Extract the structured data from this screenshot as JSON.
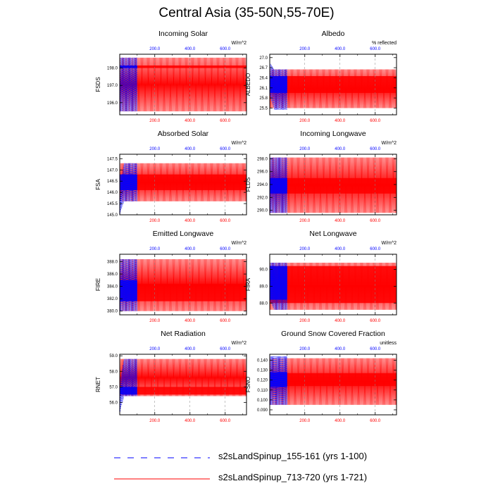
{
  "title": "Central Asia (35-50N,55-70E)",
  "colors": {
    "series_a": "#0000ff",
    "series_b": "#ff0000"
  },
  "legend": [
    {
      "label": "s2sLandSpinup_155-161 (yrs 1-100)",
      "color": "#0000ff",
      "style": "dashed"
    },
    {
      "label": "s2sLandSpinup_713-720 (yrs 1-721)",
      "color": "#ff0000",
      "style": "solid"
    }
  ],
  "chart_data": [
    {
      "type": "line",
      "title": "Incoming Solar",
      "ylabel": "FSDS",
      "units": "W/m^2",
      "top_ticks": [
        "200.0",
        "400.0",
        "600.0"
      ],
      "bottom_ticks": [
        "200.0",
        "400.0",
        "600.0"
      ],
      "xlim": [
        1,
        721
      ],
      "ylim": [
        195.3,
        198.8
      ],
      "yticks": [
        196.0,
        197.0,
        198.0
      ],
      "ytick_labels": [
        "196.0",
        "197.0",
        "198.0"
      ],
      "series": [
        {
          "legend_index": 0,
          "x_range": [
            1,
            100
          ],
          "low_start": 195.5,
          "low_end": 195.5,
          "high_start": 198.6,
          "high_end": 198.6,
          "inner_low": 198.0,
          "inner_high": 198.15
        },
        {
          "legend_index": 1,
          "x_range": [
            1,
            721
          ],
          "low_start": 195.5,
          "low_end": 195.5,
          "high_start": 198.6,
          "high_end": 198.6,
          "inner_low": 198.0,
          "inner_high": 198.15
        }
      ]
    },
    {
      "type": "line",
      "title": "Albedo",
      "ylabel": "ALBEDO",
      "units": "% reflected",
      "top_ticks": [
        "200.0",
        "400.0",
        "600.0"
      ],
      "bottom_ticks": [
        "200.0",
        "400.0",
        "600.0"
      ],
      "xlim": [
        1,
        721
      ],
      "ylim": [
        25.3,
        27.1
      ],
      "yticks": [
        25.5,
        25.8,
        26.1,
        26.4,
        26.7,
        27.0
      ],
      "ytick_labels": [
        "25.5",
        "25.8",
        "26.1",
        "26.4",
        "26.7",
        "27.0"
      ],
      "series": [
        {
          "legend_index": 0,
          "x_range": [
            1,
            100
          ],
          "low_start": 25.9,
          "low_end": 25.45,
          "high_start": 26.85,
          "high_end": 26.65,
          "inner_low": 25.95,
          "inner_high": 26.45
        },
        {
          "legend_index": 1,
          "x_range": [
            1,
            721
          ],
          "low_start": 25.5,
          "low_end": 25.5,
          "high_start": 26.65,
          "high_end": 26.65,
          "inner_low": 25.95,
          "inner_high": 26.45
        }
      ]
    },
    {
      "type": "line",
      "title": "Absorbed Solar",
      "ylabel": "FSA",
      "units": "W/m^2",
      "top_ticks": [
        "200.0",
        "400.0",
        "600.0"
      ],
      "bottom_ticks": [
        "200.0",
        "400.0",
        "600.0"
      ],
      "xlim": [
        1,
        721
      ],
      "ylim": [
        145.0,
        147.7
      ],
      "yticks": [
        145.0,
        145.5,
        146.0,
        146.5,
        147.0,
        147.5
      ],
      "ytick_labels": [
        "145.0",
        "145.5",
        "146.0",
        "146.5",
        "147.0",
        "147.5"
      ],
      "series": [
        {
          "legend_index": 0,
          "x_range": [
            1,
            100
          ],
          "low_start": 145.0,
          "low_end": 145.6,
          "high_start": 146.3,
          "high_end": 147.3,
          "inner_low": 146.1,
          "inner_high": 146.8
        },
        {
          "legend_index": 1,
          "x_range": [
            1,
            721
          ],
          "low_start": 145.6,
          "low_end": 145.6,
          "high_start": 147.3,
          "high_end": 147.3,
          "inner_low": 146.1,
          "inner_high": 146.8
        }
      ]
    },
    {
      "type": "line",
      "title": "Incoming Longwave",
      "ylabel": "FLDS",
      "units": "W/m^2",
      "top_ticks": [
        "200.0",
        "400.0",
        "600.0"
      ],
      "bottom_ticks": [
        "200.0",
        "400.0",
        "600.0"
      ],
      "xlim": [
        1,
        721
      ],
      "ylim": [
        289.3,
        298.7
      ],
      "yticks": [
        290.0,
        292.0,
        294.0,
        296.0,
        298.0
      ],
      "ytick_labels": [
        "290.0",
        "292.0",
        "294.0",
        "296.0",
        "298.0"
      ],
      "series": [
        {
          "legend_index": 0,
          "x_range": [
            1,
            100
          ],
          "low_start": 289.6,
          "low_end": 289.6,
          "high_start": 298.2,
          "high_end": 298.2,
          "inner_low": 292.6,
          "inner_high": 295.0
        },
        {
          "legend_index": 1,
          "x_range": [
            1,
            721
          ],
          "low_start": 289.6,
          "low_end": 289.6,
          "high_start": 298.2,
          "high_end": 298.2,
          "inner_low": 292.6,
          "inner_high": 295.0
        }
      ]
    },
    {
      "type": "line",
      "title": "Emitted Longwave",
      "ylabel": "FIRE",
      "units": "W/m^2",
      "top_ticks": [
        "200.0",
        "400.0",
        "600.0"
      ],
      "bottom_ticks": [
        "200.0",
        "400.0",
        "600.0"
      ],
      "xlim": [
        1,
        721
      ],
      "ylim": [
        379.4,
        389.2
      ],
      "yticks": [
        380.0,
        382.0,
        384.0,
        386.0,
        388.0
      ],
      "ytick_labels": [
        "380.0",
        "382.0",
        "384.0",
        "386.0",
        "388.0"
      ],
      "series": [
        {
          "legend_index": 0,
          "x_range": [
            1,
            100
          ],
          "low_start": 380.0,
          "low_end": 380.0,
          "high_start": 388.4,
          "high_end": 388.4,
          "inner_low": 381.6,
          "inner_high": 385.0
        },
        {
          "legend_index": 1,
          "x_range": [
            1,
            721
          ],
          "low_start": 380.0,
          "low_end": 380.0,
          "high_start": 388.4,
          "high_end": 388.4,
          "inner_low": 381.6,
          "inner_high": 384.4
        }
      ]
    },
    {
      "type": "line",
      "title": "Net Longwave",
      "ylabel": "FIRA",
      "units": "W/m^2",
      "top_ticks": [
        "200.0",
        "400.0",
        "600.0"
      ],
      "bottom_ticks": [
        "200.0",
        "400.0",
        "600.0"
      ],
      "xlim": [
        1,
        721
      ],
      "ylim": [
        87.3,
        90.9
      ],
      "yticks": [
        88.0,
        89.0,
        90.0
      ],
      "ytick_labels": [
        "88.0",
        "89.0",
        "90.0"
      ],
      "series": [
        {
          "legend_index": 0,
          "x_range": [
            1,
            100
          ],
          "low_start": 88.2,
          "low_end": 87.6,
          "high_start": 90.4,
          "high_end": 90.4,
          "inner_low": 88.2,
          "inner_high": 90.2
        },
        {
          "legend_index": 1,
          "x_range": [
            1,
            721
          ],
          "low_start": 87.6,
          "low_end": 87.6,
          "high_start": 90.4,
          "high_end": 90.4,
          "inner_low": 88.0,
          "inner_high": 90.2
        }
      ]
    },
    {
      "type": "line",
      "title": "Net Radiation",
      "ylabel": "RNET",
      "units": "W/m^2",
      "top_ticks": [
        "200.0",
        "400.0",
        "600.0"
      ],
      "bottom_ticks": [
        "200.0",
        "400.0",
        "600.0"
      ],
      "xlim": [
        1,
        721
      ],
      "ylim": [
        55.2,
        59.1
      ],
      "yticks": [
        56.0,
        57.0,
        58.0,
        59.0
      ],
      "ytick_labels": [
        "56.0",
        "57.0",
        "58.0",
        "59.0"
      ],
      "series": [
        {
          "legend_index": 0,
          "x_range": [
            1,
            100
          ],
          "low_start": 55.3,
          "low_end": 56.4,
          "high_start": 57.4,
          "high_end": 58.8,
          "inner_low": 56.5,
          "inner_high": 57.0
        },
        {
          "legend_index": 1,
          "x_range": [
            1,
            721
          ],
          "low_start": 56.4,
          "low_end": 56.4,
          "high_start": 58.8,
          "high_end": 58.8,
          "inner_low": 56.5,
          "inner_high": 57.0
        }
      ]
    },
    {
      "type": "line",
      "title": "Ground Snow Covered Fraction",
      "ylabel": "FSNO",
      "units": "unitless",
      "top_ticks": [
        "200.0",
        "400.0",
        "600.0"
      ],
      "bottom_ticks": [
        "200.0",
        "400.0",
        "600.0"
      ],
      "xlim": [
        1,
        721
      ],
      "ylim": [
        0.085,
        0.146
      ],
      "yticks": [
        0.09,
        0.1,
        0.11,
        0.12,
        0.13,
        0.14
      ],
      "ytick_labels": [
        "0.090",
        "0.100",
        "0.110",
        "0.120",
        "0.130",
        "0.140"
      ],
      "series": [
        {
          "legend_index": 0,
          "x_range": [
            1,
            100
          ],
          "low_start": 0.095,
          "low_end": 0.095,
          "high_start": 0.144,
          "high_end": 0.144,
          "inner_low": 0.113,
          "inner_high": 0.128
        },
        {
          "legend_index": 1,
          "x_range": [
            1,
            721
          ],
          "low_start": 0.095,
          "low_end": 0.095,
          "high_start": 0.142,
          "high_end": 0.142,
          "inner_low": 0.114,
          "inner_high": 0.127
        }
      ]
    }
  ]
}
